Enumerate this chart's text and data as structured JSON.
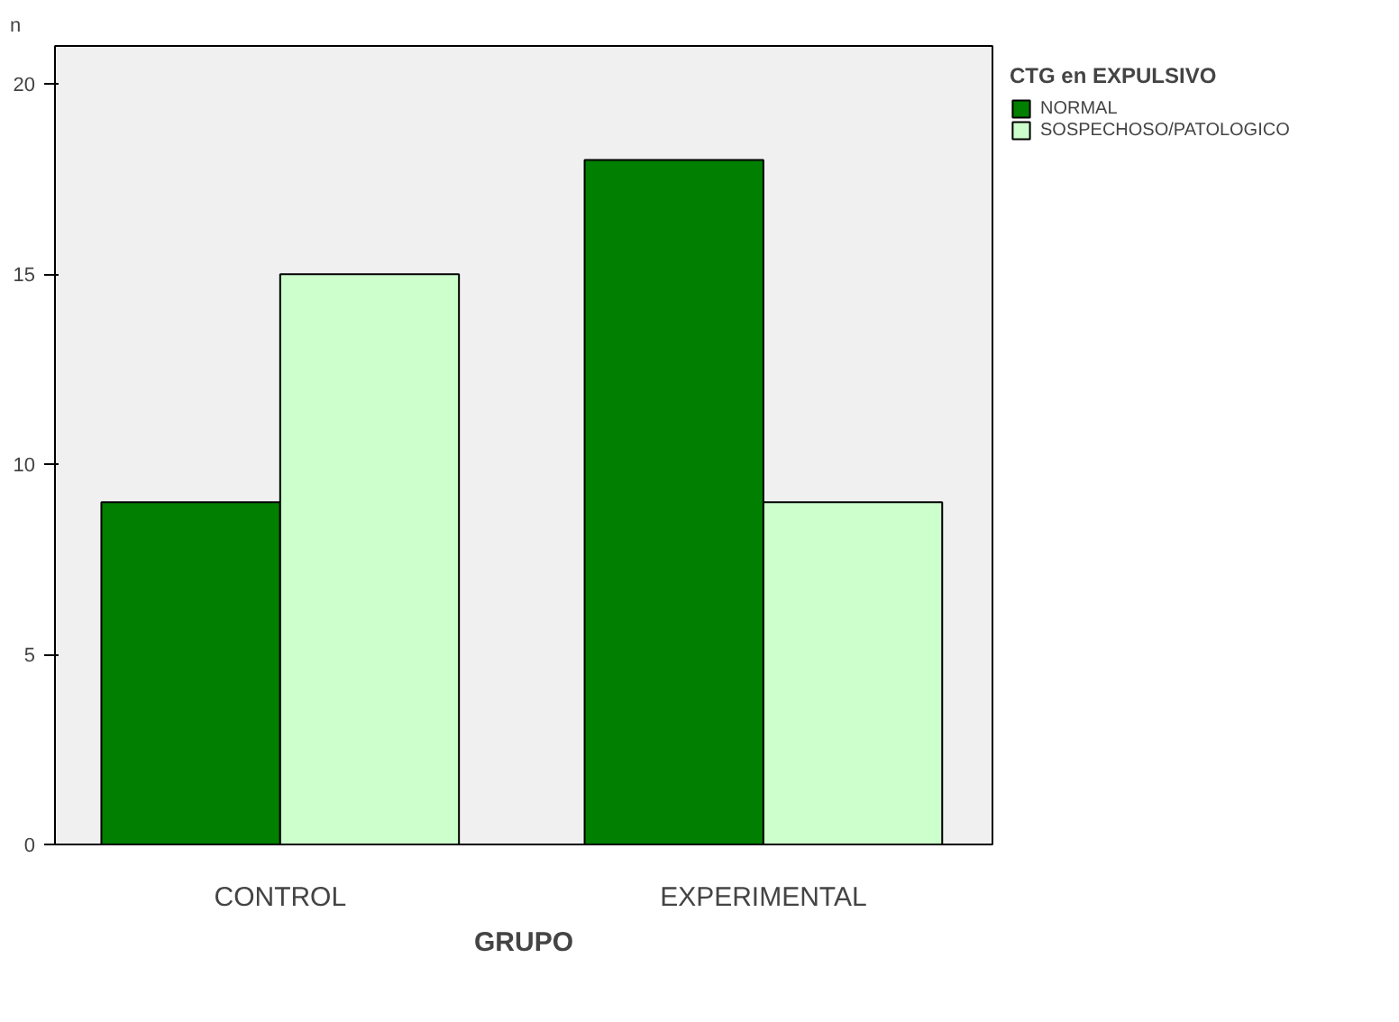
{
  "chart_data": {
    "type": "bar",
    "xlabel": "GRUPO",
    "ylabel": "n",
    "legend_title": "CTG en EXPULSIVO",
    "categories": [
      "CONTROL",
      "EXPERIMENTAL"
    ],
    "series": [
      {
        "name": "NORMAL",
        "color": "#007f00",
        "values": [
          9,
          18
        ]
      },
      {
        "name": "SOSPECHOSO/PATOLOGICO",
        "color": "#ccffcc",
        "values": [
          15,
          9
        ]
      }
    ],
    "ylim": [
      0,
      21
    ],
    "yticks": [
      0,
      5,
      10,
      15,
      20
    ],
    "grid": false,
    "legend": "top right"
  }
}
